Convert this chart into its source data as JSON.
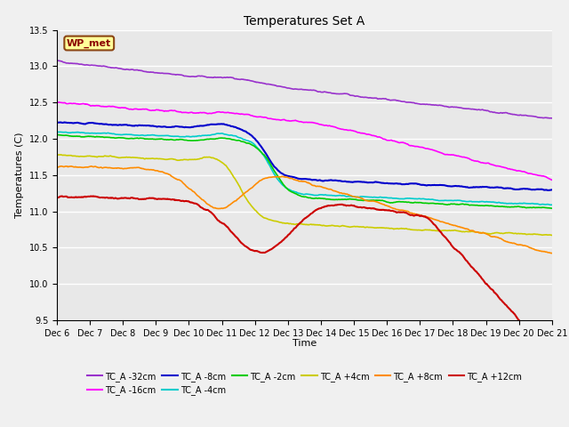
{
  "title": "Temperatures Set A",
  "xlabel": "Time",
  "ylabel": "Temperatures (C)",
  "ylim": [
    9.5,
    13.5
  ],
  "xlim": [
    0,
    360
  ],
  "x_tick_labels": [
    "Dec 6",
    "Dec 7",
    "Dec 8",
    "Dec 9",
    "Dec 10",
    "Dec 11",
    "Dec 12",
    "Dec 13",
    "Dec 14",
    "Dec 15",
    "Dec 16",
    "Dec 17",
    "Dec 18",
    "Dec 19",
    "Dec 20",
    "Dec 21"
  ],
  "background_color": "#e8e8e8",
  "fig_color": "#f0f0f0",
  "grid_color": "#ffffff",
  "series": [
    {
      "label": "TC_A -32cm",
      "color": "#9932CC",
      "lw": 1.2
    },
    {
      "label": "TC_A -16cm",
      "color": "#FF00FF",
      "lw": 1.2
    },
    {
      "label": "TC_A -8cm",
      "color": "#0000CC",
      "lw": 1.5
    },
    {
      "label": "TC_A -4cm",
      "color": "#00CCCC",
      "lw": 1.2
    },
    {
      "label": "TC_A -2cm",
      "color": "#00CC00",
      "lw": 1.2
    },
    {
      "label": "TC_A +4cm",
      "color": "#CCCC00",
      "lw": 1.2
    },
    {
      "label": "TC_A +8cm",
      "color": "#FF8C00",
      "lw": 1.2
    },
    {
      "label": "TC_A +12cm",
      "color": "#CC0000",
      "lw": 1.5
    }
  ],
  "wp_met_label": "WP_met",
  "wp_met_bbox_facecolor": "#FFFF99",
  "wp_met_bbox_edgecolor": "#8B4513",
  "yticks": [
    9.5,
    10.0,
    10.5,
    11.0,
    11.5,
    12.0,
    12.5,
    13.0,
    13.5
  ],
  "title_fontsize": 10,
  "axis_label_fontsize": 8,
  "tick_fontsize": 7,
  "legend_fontsize": 7
}
